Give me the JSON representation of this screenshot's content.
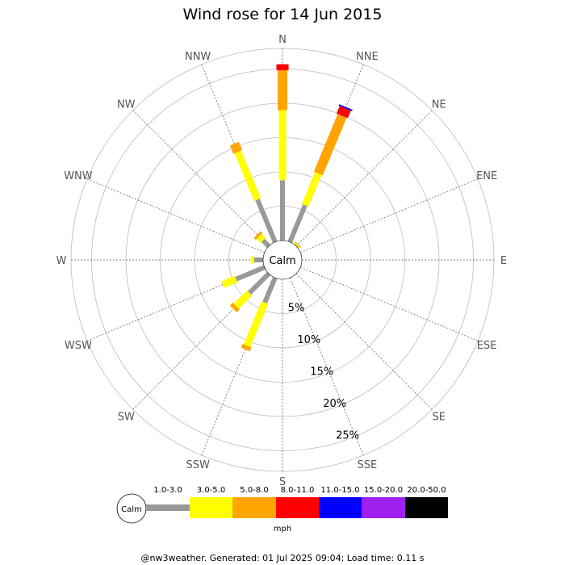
{
  "chart_data": {
    "type": "wind-rose",
    "title": "Wind rose for 14 Jun 2015",
    "directions": [
      "N",
      "NNE",
      "NE",
      "ENE",
      "E",
      "ESE",
      "SE",
      "SSE",
      "S",
      "SSW",
      "SW",
      "WSW",
      "W",
      "WNW",
      "NW",
      "NNW"
    ],
    "radial_ticks": [
      "5%",
      "10%",
      "15%",
      "20%",
      "25%"
    ],
    "radial_max_percent": 28,
    "calm_label": "Calm",
    "speed_bins": [
      {
        "label": "1.0-3.0",
        "color": "#999999"
      },
      {
        "label": "3.0-5.0",
        "color": "#ffff00"
      },
      {
        "label": "5.0-8.0",
        "color": "#ffa500"
      },
      {
        "label": "8.0-11.0",
        "color": "#ff0000"
      },
      {
        "label": "11.0-15.0",
        "color": "#0000ff"
      },
      {
        "label": "15.0-20.0",
        "color": "#a020f0"
      },
      {
        "label": "20.0-50.0",
        "color": "#000000"
      }
    ],
    "unit": "mph",
    "series_percent_by_direction": {
      "N": [
        8.8,
        10.2,
        5.8,
        0.9,
        0,
        0,
        0
      ],
      "NNE": [
        5.8,
        5.0,
        9.1,
        1.2,
        0.2,
        0,
        0
      ],
      "NE": [
        0.1,
        0.2,
        0.1,
        0,
        0,
        0,
        0
      ],
      "ENE": [
        0,
        0,
        0,
        0,
        0,
        0,
        0
      ],
      "E": [
        0,
        0,
        0,
        0,
        0,
        0,
        0
      ],
      "ESE": [
        0,
        0,
        0,
        0,
        0,
        0,
        0
      ],
      "SE": [
        0,
        0,
        0,
        0,
        0,
        0,
        0
      ],
      "SSE": [
        0,
        0,
        0,
        0,
        0,
        0,
        0
      ],
      "S": [
        0,
        0,
        0,
        0,
        0,
        0,
        0
      ],
      "SSW": [
        3.9,
        6.8,
        0.6,
        0,
        0,
        0,
        0
      ],
      "SW": [
        4.0,
        2.7,
        0.6,
        0,
        0,
        0,
        0
      ],
      "WSW": [
        4.5,
        2.1,
        0,
        0,
        0,
        0,
        0
      ],
      "W": [
        1.3,
        0.5,
        0,
        0,
        0,
        0,
        0
      ],
      "WNW": [
        0,
        0,
        0,
        0,
        0,
        0,
        0
      ],
      "NW": [
        1.2,
        0.8,
        0.4,
        0,
        0,
        0,
        0
      ],
      "NNW": [
        6.7,
        7.5,
        1.3,
        0,
        0,
        0,
        0
      ]
    },
    "grid": true
  },
  "footer": "@nw3weather. Generated: 01 Jul 2025 09:04; Load time: 0.11 s"
}
